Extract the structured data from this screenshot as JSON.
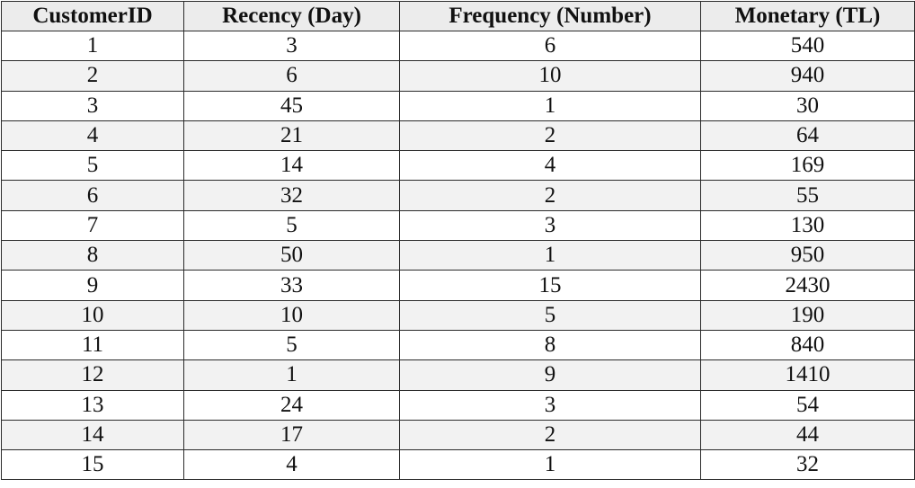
{
  "table": {
    "columns": [
      "CustomerID",
      "Recency (Day)",
      "Frequency (Number)",
      "Monetary (TL)"
    ],
    "rows": [
      [
        "1",
        "3",
        "6",
        "540"
      ],
      [
        "2",
        "6",
        "10",
        "940"
      ],
      [
        "3",
        "45",
        "1",
        "30"
      ],
      [
        "4",
        "21",
        "2",
        "64"
      ],
      [
        "5",
        "14",
        "4",
        "169"
      ],
      [
        "6",
        "32",
        "2",
        "55"
      ],
      [
        "7",
        "5",
        "3",
        "130"
      ],
      [
        "8",
        "50",
        "1",
        "950"
      ],
      [
        "9",
        "33",
        "15",
        "2430"
      ],
      [
        "10",
        "10",
        "5",
        "190"
      ],
      [
        "11",
        "5",
        "8",
        "840"
      ],
      [
        "12",
        "1",
        "9",
        "1410"
      ],
      [
        "13",
        "24",
        "3",
        "54"
      ],
      [
        "14",
        "17",
        "2",
        "44"
      ],
      [
        "15",
        "4",
        "1",
        "32"
      ]
    ]
  }
}
